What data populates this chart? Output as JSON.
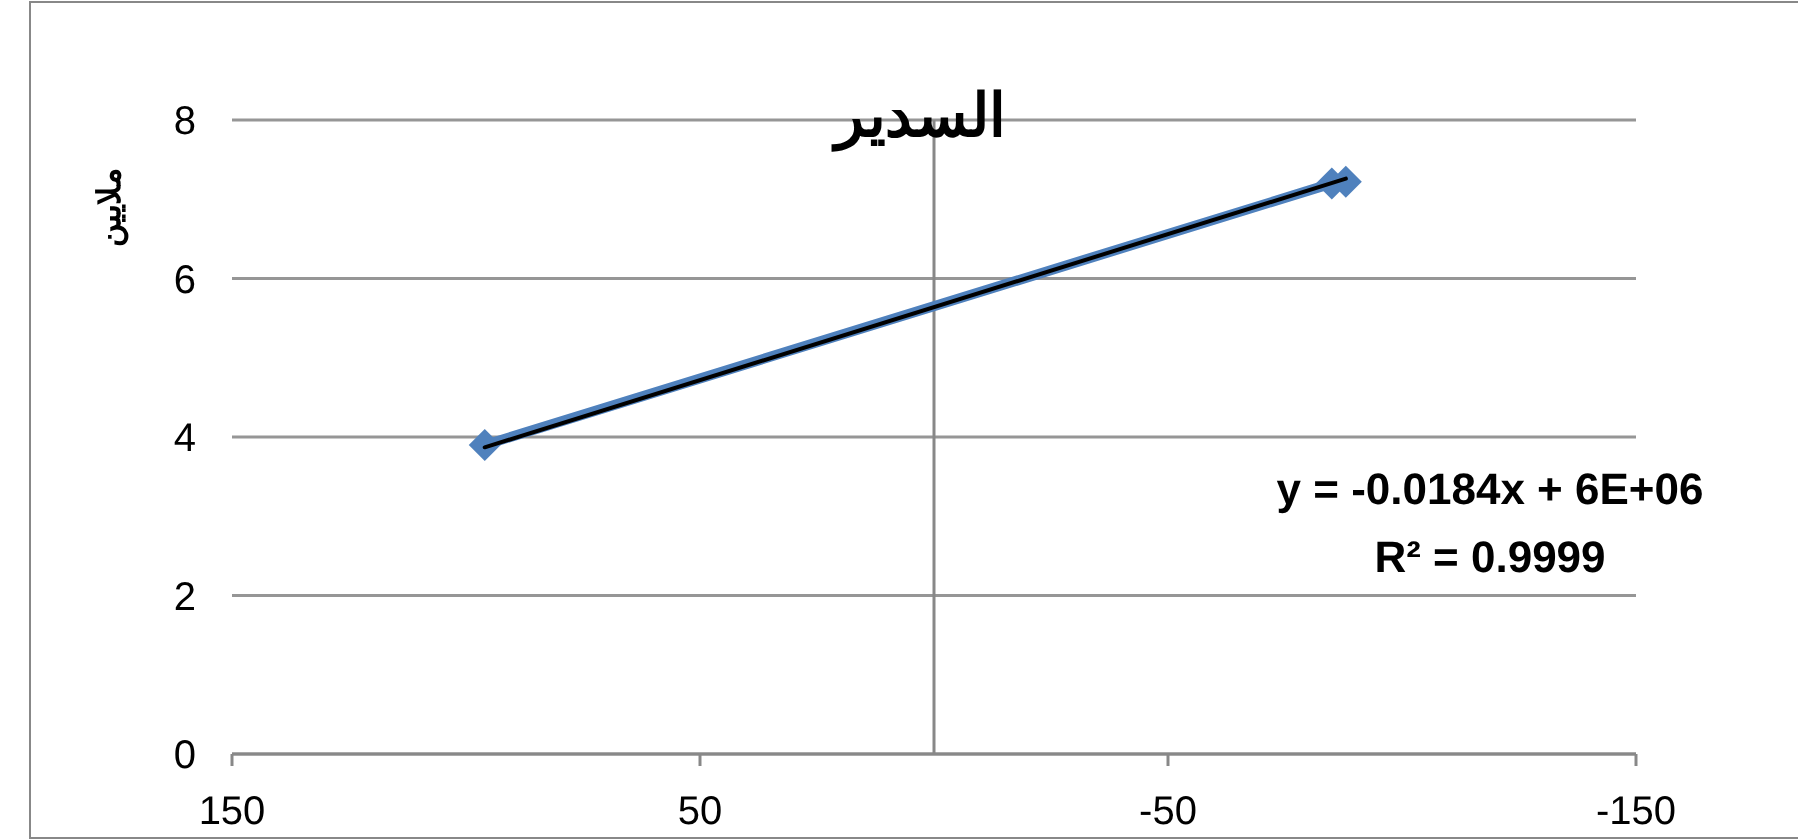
{
  "chart_data": {
    "type": "line",
    "title": "السدير",
    "ylabel": "ملايين",
    "series": [
      {
        "color": "#4f81bd",
        "marker": "diamond",
        "x": [
          96,
          -85,
          -88
        ],
        "values": [
          3.9,
          7.2,
          7.22
        ]
      },
      {
        "color": "#000000",
        "marker": "none",
        "x": [
          96,
          -88
        ],
        "values": [
          3.87,
          7.26
        ]
      }
    ],
    "xlim": [
      150,
      -150
    ],
    "xticks": [
      150,
      50,
      -50,
      -150
    ],
    "ylim": [
      0,
      8
    ],
    "yticks": [
      0,
      2,
      4,
      6,
      8
    ],
    "grid": "y",
    "annotations": [
      "y = -0.0184x + 6E+06",
      "R² = 0.9999"
    ]
  }
}
